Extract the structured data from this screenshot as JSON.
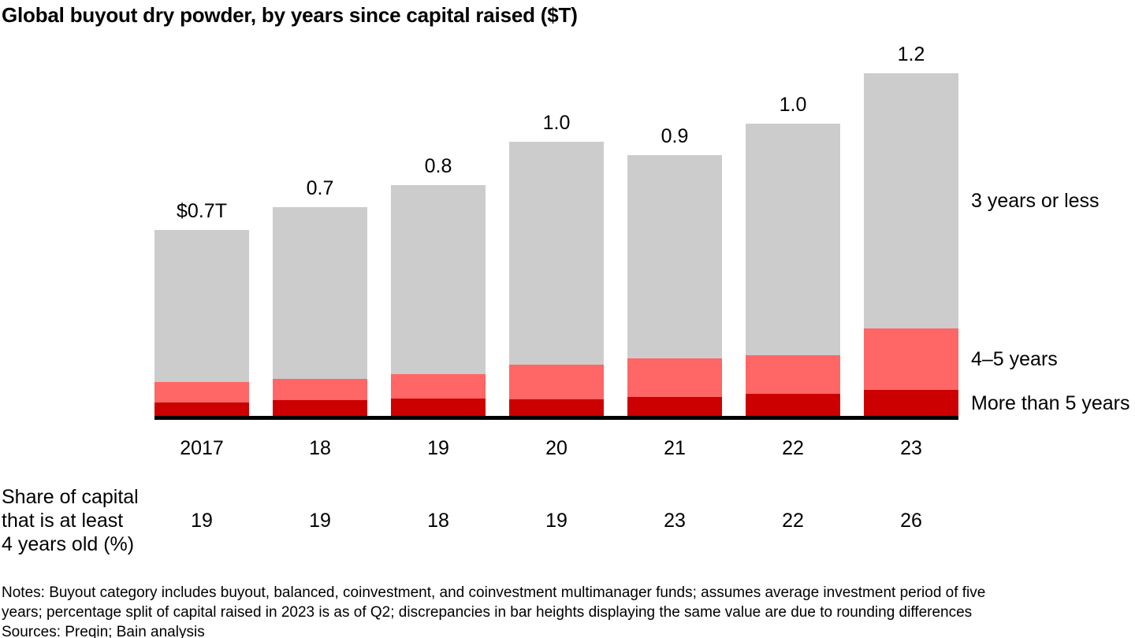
{
  "chart_data": {
    "type": "bar",
    "stacked": true,
    "title": "Global buyout dry powder, by years since capital raised ($T)",
    "unit": "$T",
    "categories": [
      "2017",
      "18",
      "19",
      "20",
      "21",
      "22",
      "23"
    ],
    "totals": [
      0.7,
      0.7,
      0.8,
      1.0,
      0.9,
      1.0,
      1.2
    ],
    "totals_display": [
      "$0.7T",
      "0.7",
      "0.8",
      "1.0",
      "0.9",
      "1.0",
      "1.2"
    ],
    "series": [
      {
        "name": "More than 5 years",
        "color": "#cc0000",
        "values": [
          0.047,
          0.055,
          0.061,
          0.058,
          0.066,
          0.077,
          0.091
        ]
      },
      {
        "name": "4–5 years",
        "color": "#ff6666",
        "values": [
          0.072,
          0.074,
          0.086,
          0.121,
          0.135,
          0.135,
          0.215
        ]
      },
      {
        "name": "3 years or less",
        "color": "#cccccc",
        "values": [
          0.532,
          0.601,
          0.662,
          0.781,
          0.712,
          0.811,
          0.894
        ]
      }
    ],
    "legend_position": "right",
    "grid": false,
    "ylim": [
      0,
      1.32
    ],
    "axis_color": "#000000",
    "share_row": {
      "label_lines": [
        "Share of capital",
        "that is at least",
        "4 years old (%)"
      ],
      "values": [
        "19",
        "19",
        "18",
        "19",
        "23",
        "22",
        "26"
      ]
    }
  },
  "notes": {
    "line1": "Notes: Buyout category includes buyout, balanced, coinvestment, and coinvestment multimanager funds; assumes average investment period of five",
    "line2": "years; percentage split of capital raised in 2023 is as of Q2; discrepancies in bar heights displaying the same value are due to rounding differences",
    "sources": "Sources: Preqin; Bain analysis"
  }
}
